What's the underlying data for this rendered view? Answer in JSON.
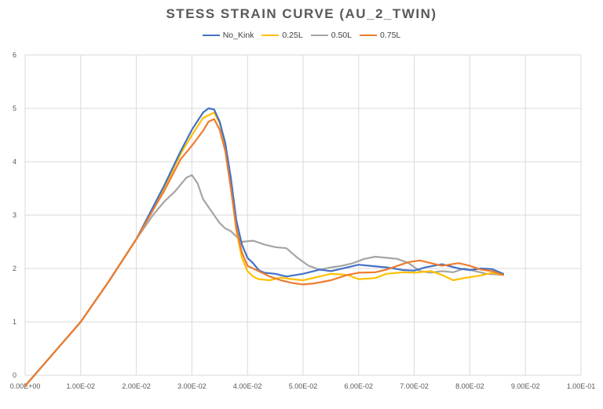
{
  "chart_data": {
    "type": "line",
    "title": "STESS STRAIN CURVE (AU_2_TWIN)",
    "xlabel": "",
    "ylabel": "",
    "xlim": [
      0,
      0.1
    ],
    "ylim": [
      0,
      6
    ],
    "x_ticks": [
      "0.00E+00",
      "1.00E-02",
      "2.00E-02",
      "3.00E-02",
      "4.00E-02",
      "5.00E-02",
      "6.00E-02",
      "7.00E-02",
      "8.00E-02",
      "9.00E-02",
      "1.00E-01"
    ],
    "y_ticks": [
      "0",
      "1",
      "2",
      "3",
      "4",
      "5",
      "6"
    ],
    "grid": true,
    "legend_position": "top",
    "series": [
      {
        "name": "No_Kink",
        "color": "#4472C4",
        "points": [
          [
            0,
            -0.2
          ],
          [
            0.005,
            0.4
          ],
          [
            0.01,
            1.0
          ],
          [
            0.015,
            1.75
          ],
          [
            0.02,
            2.55
          ],
          [
            0.025,
            3.55
          ],
          [
            0.028,
            4.2
          ],
          [
            0.03,
            4.6
          ],
          [
            0.032,
            4.92
          ],
          [
            0.033,
            5.0
          ],
          [
            0.034,
            4.98
          ],
          [
            0.035,
            4.75
          ],
          [
            0.036,
            4.35
          ],
          [
            0.037,
            3.7
          ],
          [
            0.038,
            2.9
          ],
          [
            0.039,
            2.45
          ],
          [
            0.04,
            2.2
          ],
          [
            0.041,
            2.1
          ],
          [
            0.042,
            1.97
          ],
          [
            0.043,
            1.92
          ],
          [
            0.045,
            1.9
          ],
          [
            0.047,
            1.85
          ],
          [
            0.05,
            1.9
          ],
          [
            0.053,
            1.98
          ],
          [
            0.055,
            1.95
          ],
          [
            0.058,
            2.02
          ],
          [
            0.06,
            2.07
          ],
          [
            0.062,
            2.05
          ],
          [
            0.065,
            2.02
          ],
          [
            0.068,
            1.97
          ],
          [
            0.07,
            1.96
          ],
          [
            0.072,
            2.02
          ],
          [
            0.075,
            2.08
          ],
          [
            0.078,
            2.0
          ],
          [
            0.08,
            1.97
          ],
          [
            0.082,
            2.0
          ],
          [
            0.084,
            1.99
          ],
          [
            0.086,
            1.9
          ]
        ]
      },
      {
        "name": "0.25L",
        "color": "#FFC000",
        "points": [
          [
            0,
            -0.2
          ],
          [
            0.005,
            0.4
          ],
          [
            0.01,
            1.0
          ],
          [
            0.015,
            1.75
          ],
          [
            0.02,
            2.55
          ],
          [
            0.025,
            3.5
          ],
          [
            0.028,
            4.15
          ],
          [
            0.03,
            4.5
          ],
          [
            0.032,
            4.82
          ],
          [
            0.034,
            4.92
          ],
          [
            0.035,
            4.72
          ],
          [
            0.036,
            4.3
          ],
          [
            0.037,
            3.55
          ],
          [
            0.038,
            2.7
          ],
          [
            0.039,
            2.2
          ],
          [
            0.04,
            1.95
          ],
          [
            0.041,
            1.85
          ],
          [
            0.042,
            1.8
          ],
          [
            0.044,
            1.78
          ],
          [
            0.046,
            1.83
          ],
          [
            0.048,
            1.8
          ],
          [
            0.05,
            1.78
          ],
          [
            0.053,
            1.85
          ],
          [
            0.055,
            1.9
          ],
          [
            0.058,
            1.88
          ],
          [
            0.06,
            1.8
          ],
          [
            0.063,
            1.82
          ],
          [
            0.065,
            1.9
          ],
          [
            0.068,
            1.93
          ],
          [
            0.07,
            1.92
          ],
          [
            0.073,
            1.95
          ],
          [
            0.075,
            1.88
          ],
          [
            0.077,
            1.78
          ],
          [
            0.079,
            1.82
          ],
          [
            0.082,
            1.87
          ],
          [
            0.084,
            1.92
          ],
          [
            0.086,
            1.88
          ]
        ]
      },
      {
        "name": "0.50L",
        "color": "#A5A5A5",
        "points": [
          [
            0,
            -0.2
          ],
          [
            0.005,
            0.4
          ],
          [
            0.01,
            1.0
          ],
          [
            0.015,
            1.75
          ],
          [
            0.02,
            2.55
          ],
          [
            0.023,
            3.0
          ],
          [
            0.025,
            3.25
          ],
          [
            0.027,
            3.45
          ],
          [
            0.029,
            3.7
          ],
          [
            0.03,
            3.75
          ],
          [
            0.031,
            3.6
          ],
          [
            0.032,
            3.3
          ],
          [
            0.033,
            3.15
          ],
          [
            0.034,
            3.0
          ],
          [
            0.035,
            2.85
          ],
          [
            0.036,
            2.75
          ],
          [
            0.037,
            2.7
          ],
          [
            0.038,
            2.6
          ],
          [
            0.039,
            2.5
          ],
          [
            0.041,
            2.52
          ],
          [
            0.043,
            2.45
          ],
          [
            0.045,
            2.4
          ],
          [
            0.047,
            2.38
          ],
          [
            0.049,
            2.2
          ],
          [
            0.051,
            2.05
          ],
          [
            0.053,
            1.98
          ],
          [
            0.055,
            2.02
          ],
          [
            0.057,
            2.05
          ],
          [
            0.059,
            2.1
          ],
          [
            0.061,
            2.18
          ],
          [
            0.063,
            2.22
          ],
          [
            0.065,
            2.2
          ],
          [
            0.067,
            2.18
          ],
          [
            0.069,
            2.1
          ],
          [
            0.071,
            1.95
          ],
          [
            0.073,
            1.92
          ],
          [
            0.075,
            1.95
          ],
          [
            0.077,
            1.93
          ],
          [
            0.079,
            2.0
          ],
          [
            0.081,
            1.95
          ],
          [
            0.083,
            1.9
          ],
          [
            0.086,
            1.88
          ]
        ]
      },
      {
        "name": "0.75L",
        "color": "#ED7D31",
        "points": [
          [
            0,
            -0.2
          ],
          [
            0.005,
            0.4
          ],
          [
            0.01,
            1.0
          ],
          [
            0.015,
            1.75
          ],
          [
            0.02,
            2.55
          ],
          [
            0.025,
            3.45
          ],
          [
            0.028,
            4.05
          ],
          [
            0.03,
            4.3
          ],
          [
            0.032,
            4.58
          ],
          [
            0.033,
            4.75
          ],
          [
            0.034,
            4.8
          ],
          [
            0.035,
            4.6
          ],
          [
            0.036,
            4.2
          ],
          [
            0.037,
            3.5
          ],
          [
            0.038,
            2.75
          ],
          [
            0.039,
            2.3
          ],
          [
            0.04,
            2.05
          ],
          [
            0.042,
            1.95
          ],
          [
            0.044,
            1.85
          ],
          [
            0.046,
            1.78
          ],
          [
            0.048,
            1.73
          ],
          [
            0.05,
            1.7
          ],
          [
            0.052,
            1.72
          ],
          [
            0.055,
            1.78
          ],
          [
            0.058,
            1.88
          ],
          [
            0.06,
            1.92
          ],
          [
            0.063,
            1.93
          ],
          [
            0.065,
            1.98
          ],
          [
            0.067,
            2.05
          ],
          [
            0.069,
            2.12
          ],
          [
            0.071,
            2.15
          ],
          [
            0.073,
            2.1
          ],
          [
            0.075,
            2.05
          ],
          [
            0.078,
            2.1
          ],
          [
            0.08,
            2.05
          ],
          [
            0.082,
            1.98
          ],
          [
            0.084,
            1.95
          ],
          [
            0.086,
            1.88
          ]
        ]
      }
    ]
  }
}
